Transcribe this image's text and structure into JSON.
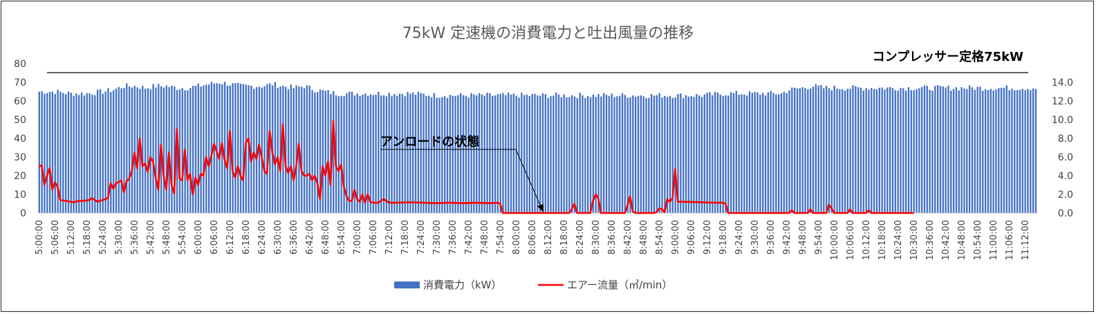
{
  "chart_data": {
    "type": "bar+line",
    "title": "75kW 定速機の消費電力と吐出風量の推移",
    "y_left": {
      "min": 0,
      "max": 80,
      "ticks": [
        "0",
        "10",
        "20",
        "30",
        "40",
        "50",
        "60",
        "70",
        "80"
      ]
    },
    "y_right": {
      "min": 0,
      "max": 16,
      "ticks": [
        "0.0",
        "2.0",
        "4.0",
        "6.0",
        "8.0",
        "10.0",
        "12.0",
        "14.0"
      ]
    },
    "x_ticks": [
      "5:00:00",
      "5:06:00",
      "5:12:00",
      "5:18:00",
      "5:24:00",
      "5:30:00",
      "5:36:00",
      "5:42:00",
      "5:48:00",
      "5:54:00",
      "6:00:00",
      "6:06:00",
      "6:12:00",
      "6:18:00",
      "6:24:00",
      "6:30:00",
      "6:36:00",
      "6:42:00",
      "6:48:00",
      "6:54:00",
      "7:00:00",
      "7:06:00",
      "7:12:00",
      "7:18:00",
      "7:24:00",
      "7:30:00",
      "7:36:00",
      "7:42:00",
      "7:48:00",
      "7:54:00",
      "8:00:00",
      "8:06:00",
      "8:12:00",
      "8:18:00",
      "8:24:00",
      "8:30:00",
      "8:36:00",
      "8:42:00",
      "8:48:00",
      "8:54:00",
      "9:00:00",
      "9:06:00",
      "9:12:00",
      "9:18:00",
      "9:24:00",
      "9:30:00",
      "9:36:00",
      "9:42:00",
      "9:48:00",
      "9:54:00",
      "10:00:00",
      "10:06:00",
      "10:12:00",
      "10:18:00",
      "10:24:00",
      "10:30:00",
      "10:36:00",
      "10:42:00",
      "10:48:00",
      "10:54:00",
      "11:00:00",
      "11:06:00",
      "11:12:00"
    ],
    "series": [
      {
        "name": "消費電力（kW）",
        "axis": "left",
        "kind": "bar",
        "color": "#4472C4",
        "points": [
          [
            0,
            65
          ],
          [
            6,
            65
          ],
          [
            12,
            64
          ],
          [
            18,
            64
          ],
          [
            24,
            65
          ],
          [
            28,
            66
          ],
          [
            32,
            68
          ],
          [
            36,
            68
          ],
          [
            40,
            67
          ],
          [
            44,
            68
          ],
          [
            48,
            68
          ],
          [
            52,
            67
          ],
          [
            56,
            67
          ],
          [
            60,
            68
          ],
          [
            64,
            69
          ],
          [
            68,
            70
          ],
          [
            72,
            69
          ],
          [
            76,
            68
          ],
          [
            80,
            68
          ],
          [
            84,
            68
          ],
          [
            88,
            69
          ],
          [
            92,
            68
          ],
          [
            96,
            67
          ],
          [
            100,
            68
          ],
          [
            104,
            66
          ],
          [
            108,
            65
          ],
          [
            112,
            64
          ],
          [
            120,
            64
          ],
          [
            130,
            64
          ],
          [
            140,
            64
          ],
          [
            150,
            63
          ],
          [
            160,
            63
          ],
          [
            170,
            63
          ],
          [
            180,
            63
          ],
          [
            190,
            63
          ],
          [
            200,
            63
          ],
          [
            210,
            63
          ],
          [
            220,
            63
          ],
          [
            230,
            63
          ],
          [
            240,
            63
          ],
          [
            250,
            63
          ],
          [
            260,
            64
          ],
          [
            270,
            64
          ],
          [
            275,
            64
          ],
          [
            280,
            64
          ],
          [
            283,
            66
          ],
          [
            288,
            67
          ],
          [
            292,
            68
          ],
          [
            296,
            67
          ],
          [
            300,
            67
          ],
          [
            304,
            67
          ],
          [
            308,
            67
          ],
          [
            312,
            67
          ],
          [
            316,
            67
          ],
          [
            319,
            67
          ]
        ]
      },
      {
        "name": "エアー流量（㎥/min）",
        "axis": "right",
        "kind": "line",
        "color": "#FF0000",
        "points": [
          [
            0,
            5.0
          ],
          [
            1,
            5.1
          ],
          [
            2,
            3.0
          ],
          [
            3,
            4.0
          ],
          [
            4,
            4.8
          ],
          [
            5,
            2.5
          ],
          [
            6,
            3.3
          ],
          [
            7,
            2.8
          ],
          [
            8,
            1.4
          ],
          [
            10,
            1.3
          ],
          [
            12,
            1.2
          ],
          [
            13,
            1.15
          ],
          [
            15,
            1.3
          ],
          [
            17,
            1.3
          ],
          [
            19,
            1.4
          ],
          [
            20,
            1.6
          ],
          [
            21,
            1.4
          ],
          [
            22,
            1.2
          ],
          [
            24,
            1.4
          ],
          [
            26,
            1.6
          ],
          [
            27,
            3.2
          ],
          [
            28,
            2.6
          ],
          [
            29,
            3.2
          ],
          [
            30,
            3.3
          ],
          [
            31,
            3.5
          ],
          [
            32,
            2.2
          ],
          [
            33,
            3.4
          ],
          [
            34,
            3.7
          ],
          [
            35,
            4.5
          ],
          [
            36,
            6.5
          ],
          [
            37,
            4.8
          ],
          [
            38,
            8.0
          ],
          [
            39,
            5.0
          ],
          [
            40,
            5.3
          ],
          [
            41,
            4.4
          ],
          [
            42,
            6.0
          ],
          [
            43,
            5.5
          ],
          [
            44,
            3.8
          ],
          [
            45,
            2.5
          ],
          [
            46,
            7.3
          ],
          [
            47,
            4.0
          ],
          [
            48,
            2.5
          ],
          [
            49,
            6.5
          ],
          [
            50,
            3.0
          ],
          [
            51,
            2.1
          ],
          [
            52,
            9.0
          ],
          [
            53,
            3.7
          ],
          [
            54,
            3.5
          ],
          [
            55,
            6.8
          ],
          [
            56,
            3.5
          ],
          [
            57,
            4.2
          ],
          [
            58,
            2.0
          ],
          [
            59,
            3.8
          ],
          [
            60,
            3.0
          ],
          [
            61,
            4.2
          ],
          [
            62,
            4.0
          ],
          [
            63,
            6.0
          ],
          [
            64,
            5.0
          ],
          [
            65,
            6.1
          ],
          [
            66,
            7.4
          ],
          [
            67,
            6.6
          ],
          [
            68,
            5.8
          ],
          [
            69,
            7.5
          ],
          [
            70,
            5.7
          ],
          [
            71,
            4.8
          ],
          [
            72,
            8.8
          ],
          [
            73,
            4.5
          ],
          [
            74,
            3.8
          ],
          [
            75,
            5.0
          ],
          [
            76,
            4.0
          ],
          [
            77,
            3.5
          ],
          [
            78,
            7.5
          ],
          [
            79,
            8.0
          ],
          [
            80,
            5.5
          ],
          [
            81,
            6.5
          ],
          [
            82,
            5.8
          ],
          [
            83,
            7.3
          ],
          [
            84,
            6.0
          ],
          [
            85,
            4.5
          ],
          [
            86,
            4.2
          ],
          [
            87,
            8.8
          ],
          [
            88,
            6.5
          ],
          [
            89,
            5.2
          ],
          [
            90,
            6.0
          ],
          [
            91,
            4.5
          ],
          [
            92,
            9.5
          ],
          [
            93,
            5.0
          ],
          [
            94,
            4.3
          ],
          [
            95,
            5.0
          ],
          [
            96,
            3.5
          ],
          [
            97,
            5.0
          ],
          [
            98,
            7.4
          ],
          [
            99,
            4.5
          ],
          [
            100,
            4.0
          ],
          [
            101,
            4.0
          ],
          [
            102,
            4.2
          ],
          [
            103,
            3.5
          ],
          [
            104,
            4.0
          ],
          [
            105,
            3.2
          ],
          [
            106,
            1.5
          ],
          [
            107,
            5.0
          ],
          [
            108,
            4.0
          ],
          [
            109,
            5.5
          ],
          [
            110,
            3.0
          ],
          [
            111,
            9.9
          ],
          [
            112,
            5.0
          ],
          [
            113,
            4.5
          ],
          [
            114,
            5.2
          ],
          [
            115,
            2.8
          ],
          [
            116,
            1.8
          ],
          [
            117,
            1.3
          ],
          [
            118,
            1.3
          ],
          [
            119,
            2.5
          ],
          [
            120,
            1.5
          ],
          [
            121,
            1.2
          ],
          [
            122,
            2.0
          ],
          [
            123,
            1.1
          ],
          [
            124,
            2.0
          ],
          [
            125,
            1.2
          ],
          [
            126,
            1.1
          ],
          [
            128,
            1.1
          ],
          [
            130,
            1.5
          ],
          [
            132,
            1.1
          ],
          [
            135,
            1.1
          ],
          [
            140,
            1.15
          ],
          [
            145,
            1.1
          ],
          [
            150,
            1.05
          ],
          [
            155,
            1.1
          ],
          [
            160,
            1.05
          ],
          [
            165,
            1.1
          ],
          [
            170,
            1.05
          ],
          [
            173,
            1.1
          ],
          [
            174,
            1.0
          ],
          [
            175,
            0
          ],
          [
            200,
            0
          ],
          [
            201,
            0.4
          ],
          [
            202,
            1.0
          ],
          [
            203,
            0
          ],
          [
            208,
            0
          ],
          [
            209,
            1.3
          ],
          [
            210,
            2.0
          ],
          [
            211,
            1.6
          ],
          [
            212,
            0
          ],
          [
            221,
            0
          ],
          [
            222,
            0.8
          ],
          [
            223,
            1.8
          ],
          [
            224,
            0.2
          ],
          [
            225,
            0
          ],
          [
            232,
            0
          ],
          [
            233,
            0.1
          ],
          [
            234,
            0.5
          ],
          [
            235,
            0.4
          ],
          [
            236,
            0.1
          ],
          [
            237,
            1.5
          ],
          [
            238,
            1.2
          ],
          [
            239,
            1.6
          ],
          [
            240,
            4.7
          ],
          [
            241,
            1.2
          ],
          [
            245,
            1.2
          ],
          [
            250,
            1.15
          ],
          [
            255,
            1.1
          ],
          [
            258,
            1.1
          ],
          [
            259,
            1.0
          ],
          [
            260,
            0
          ],
          [
            283,
            0
          ],
          [
            284,
            0.3
          ],
          [
            285,
            0
          ],
          [
            290,
            0
          ],
          [
            291,
            0.4
          ],
          [
            292,
            0
          ],
          [
            297,
            0
          ],
          [
            298,
            0.9
          ],
          [
            299,
            0.5
          ],
          [
            300,
            0
          ],
          [
            305,
            0
          ],
          [
            306,
            0.4
          ],
          [
            307,
            0
          ],
          [
            312,
            0
          ],
          [
            313,
            0.3
          ],
          [
            314,
            0
          ],
          [
            330,
            0
          ]
        ]
      }
    ],
    "annotations": [
      "コンプレッサー定格75kW",
      "アンロードの状態"
    ],
    "legend": "bottom",
    "grid": false
  }
}
